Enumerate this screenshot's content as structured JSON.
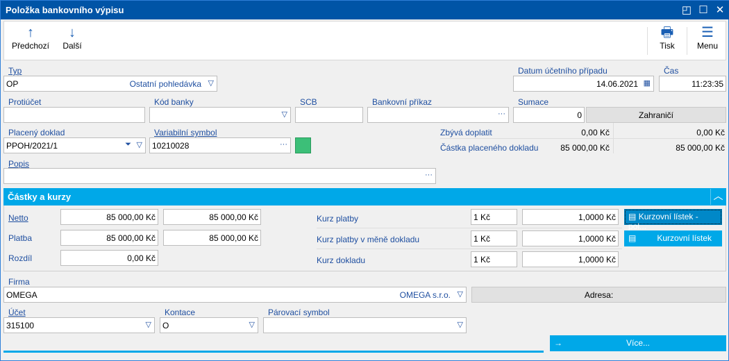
{
  "window": {
    "title": "Položka bankovního výpisu"
  },
  "toolbar": {
    "prev": "Předchozí",
    "next": "Další",
    "print": "Tisk",
    "menu": "Menu"
  },
  "form": {
    "typ": {
      "label": "Typ",
      "code": "OP",
      "name": "Ostatní pohledávka"
    },
    "datum": {
      "label": "Datum účetního případu",
      "value": "14.06.2021"
    },
    "cas": {
      "label": "Čas",
      "value": "11:23:35"
    },
    "protiucet": {
      "label": "Protiúčet",
      "value": ""
    },
    "kod_banky": {
      "label": "Kód banky",
      "value": ""
    },
    "scb": {
      "label": "SCB",
      "value": ""
    },
    "bankovni_prikaz": {
      "label": "Bankovní příkaz",
      "value": ""
    },
    "sumace": {
      "label": "Sumace",
      "value": "0"
    },
    "zahranici_button": "Zahraničí",
    "placeny_doklad": {
      "label": "Placený doklad",
      "value": "PPOH/2021/1"
    },
    "variabilni_symbol": {
      "label": "Variabilní symbol",
      "value": "10210028"
    },
    "status_color": "#3cbf78",
    "zbyva": {
      "label": "Zbývá doplatit",
      "value1": "0,00 Kč",
      "value2": "0,00 Kč"
    },
    "castka": {
      "label": "Částka placeného dokladu",
      "value1": "85 000,00 Kč",
      "value2": "85 000,00 Kč"
    },
    "popis": {
      "label": "Popis",
      "value": ""
    }
  },
  "section": {
    "title": "Částky a kurzy",
    "netto": {
      "label": "Netto",
      "v1": "85 000,00 Kč",
      "v2": "85 000,00 Kč"
    },
    "platba": {
      "label": "Platba",
      "v1": "85 000,00 Kč",
      "v2": "85 000,00 Kč"
    },
    "rozdil": {
      "label": "Rozdíl",
      "v1": "0,00 Kč"
    },
    "kurz_platby": {
      "label": "Kurz platby",
      "amount": "1 Kč",
      "rate": "1,0000 Kč"
    },
    "kurz_platby_mena": {
      "label": "Kurz platby v měně dokladu",
      "amount": "1 Kč",
      "rate": "1,0000 Kč"
    },
    "kurz_dokladu": {
      "label": "Kurz dokladu",
      "amount": "1 Kč",
      "rate": "1,0000 Kč"
    },
    "btn_kl_pol": "Kurzovní lístek - pol...",
    "btn_kl": "Kurzovní lístek"
  },
  "bottom": {
    "firma": {
      "label": "Firma",
      "code": "OMEGA",
      "name": "OMEGA s.r.o."
    },
    "adresa_button": "Adresa:",
    "ucet": {
      "label": "Účet",
      "value": "315100"
    },
    "kontace": {
      "label": "Kontace",
      "value": "O"
    },
    "parovaci": {
      "label": "Párovací symbol",
      "value": ""
    },
    "vice_button": "Více..."
  },
  "colors": {
    "title_bar": "#0054a6",
    "accent": "#00a8e8",
    "label": "#1f4fa0"
  }
}
